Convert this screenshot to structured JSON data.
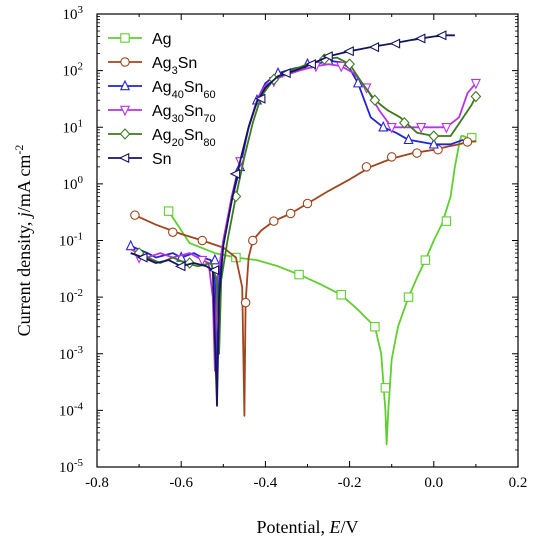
{
  "chart_data": {
    "type": "line",
    "xlabel_text": "Potential, ",
    "xlabel_var": "E",
    "xlabel_unit": "/V",
    "ylabel_text": "Current density, ",
    "ylabel_var": "j",
    "ylabel_unit": "/mA cm",
    "ylabel_exp": "-2",
    "xlim": [
      -0.8,
      0.2
    ],
    "ylim": [
      1e-05,
      1000
    ],
    "yscale": "log",
    "x_ticks": [
      "-0.8",
      "-0.6",
      "-0.4",
      "-0.2",
      "0.0",
      "0.2"
    ],
    "y_ticks": [
      {
        "base": "10",
        "exp": "-5"
      },
      {
        "base": "10",
        "exp": "-4"
      },
      {
        "base": "10",
        "exp": "-3"
      },
      {
        "base": "10",
        "exp": "-2"
      },
      {
        "base": "10",
        "exp": "-1"
      },
      {
        "base": "10",
        "exp": "0"
      },
      {
        "base": "10",
        "exp": "1"
      },
      {
        "base": "10",
        "exp": "2"
      },
      {
        "base": "10",
        "exp": "3"
      }
    ],
    "legend_position": "top-left",
    "series": [
      {
        "name": "Ag",
        "name_parts": [
          [
            "Ag",
            ""
          ]
        ],
        "color": "#5fcf2f",
        "marker": "square",
        "points": [
          [
            -0.63,
            0.33
          ],
          [
            -0.58,
            0.09
          ],
          [
            -0.52,
            0.06
          ],
          [
            -0.47,
            0.05
          ],
          [
            -0.42,
            0.045
          ],
          [
            -0.37,
            0.035
          ],
          [
            -0.32,
            0.025
          ],
          [
            -0.27,
            0.017
          ],
          [
            -0.22,
            0.011
          ],
          [
            -0.18,
            0.006
          ],
          [
            -0.14,
            0.003
          ],
          [
            -0.125,
            0.001
          ],
          [
            -0.115,
            0.0001
          ],
          [
            -0.112,
            2.5e-05
          ],
          [
            -0.108,
            0.0001
          ],
          [
            -0.1,
            0.0008
          ],
          [
            -0.085,
            0.003
          ],
          [
            -0.06,
            0.01
          ],
          [
            -0.04,
            0.022
          ],
          [
            -0.02,
            0.045
          ],
          [
            0.0,
            0.1
          ],
          [
            0.02,
            0.2
          ],
          [
            0.04,
            0.6
          ],
          [
            0.05,
            2.0
          ],
          [
            0.06,
            5.0
          ],
          [
            0.065,
            7.0
          ],
          [
            0.07,
            7.0
          ],
          [
            0.08,
            6.5
          ],
          [
            0.09,
            6.5
          ],
          [
            0.1,
            6.5
          ]
        ],
        "marker_points": [
          [
            -0.63,
            0.33
          ],
          [
            -0.47,
            0.05
          ],
          [
            -0.32,
            0.025
          ],
          [
            -0.22,
            0.011
          ],
          [
            -0.14,
            0.003
          ],
          [
            -0.115,
            0.00025
          ],
          [
            -0.06,
            0.01
          ],
          [
            -0.02,
            0.045
          ],
          [
            0.03,
            0.22
          ],
          [
            0.09,
            6.5
          ]
        ]
      },
      {
        "name": "Ag3Sn",
        "name_parts": [
          [
            "Ag",
            ""
          ],
          [
            "3",
            "sub"
          ],
          [
            "Sn",
            ""
          ]
        ],
        "color": "#a0461e",
        "marker": "circle",
        "points": [
          [
            -0.71,
            0.28
          ],
          [
            -0.66,
            0.19
          ],
          [
            -0.6,
            0.13
          ],
          [
            -0.55,
            0.1
          ],
          [
            -0.5,
            0.075
          ],
          [
            -0.47,
            0.05
          ],
          [
            -0.455,
            0.015
          ],
          [
            -0.45,
            8e-05
          ],
          [
            -0.447,
            0.008
          ],
          [
            -0.44,
            0.05
          ],
          [
            -0.43,
            0.1
          ],
          [
            -0.41,
            0.15
          ],
          [
            -0.38,
            0.22
          ],
          [
            -0.34,
            0.3
          ],
          [
            -0.3,
            0.45
          ],
          [
            -0.25,
            0.75
          ],
          [
            -0.2,
            1.2
          ],
          [
            -0.15,
            2.0
          ],
          [
            -0.1,
            2.8
          ],
          [
            -0.05,
            3.5
          ],
          [
            0.0,
            4.0
          ],
          [
            0.03,
            4.5
          ],
          [
            0.06,
            5.0
          ],
          [
            0.08,
            5.5
          ],
          [
            0.1,
            5.7
          ]
        ],
        "marker_points": [
          [
            -0.71,
            0.28
          ],
          [
            -0.62,
            0.14
          ],
          [
            -0.55,
            0.1
          ],
          [
            -0.447,
            0.008
          ],
          [
            -0.43,
            0.1
          ],
          [
            -0.38,
            0.22
          ],
          [
            -0.34,
            0.3
          ],
          [
            -0.3,
            0.45
          ],
          [
            -0.16,
            2.0
          ],
          [
            -0.1,
            3.0
          ],
          [
            -0.04,
            3.5
          ],
          [
            0.01,
            4.0
          ],
          [
            0.08,
            5.5
          ]
        ]
      },
      {
        "name": "Ag40Sn60",
        "name_parts": [
          [
            "Ag",
            ""
          ],
          [
            "40",
            "sub"
          ],
          [
            "Sn",
            ""
          ],
          [
            "60",
            "sub"
          ]
        ],
        "color": "#2323d6",
        "marker": "triangle-up",
        "points": [
          [
            -0.72,
            0.08
          ],
          [
            -0.68,
            0.06
          ],
          [
            -0.66,
            0.05
          ],
          [
            -0.62,
            0.06
          ],
          [
            -0.6,
            0.05
          ],
          [
            -0.57,
            0.06
          ],
          [
            -0.55,
            0.05
          ],
          [
            -0.53,
            0.045
          ],
          [
            -0.52,
            0.02
          ],
          [
            -0.515,
            0.0005
          ],
          [
            -0.51,
            0.02
          ],
          [
            -0.5,
            0.1
          ],
          [
            -0.48,
            0.5
          ],
          [
            -0.46,
            2.0
          ],
          [
            -0.44,
            10.0
          ],
          [
            -0.42,
            30.0
          ],
          [
            -0.4,
            60.0
          ],
          [
            -0.37,
            90.0
          ],
          [
            -0.33,
            110.0
          ],
          [
            -0.28,
            130.0
          ],
          [
            -0.25,
            150.0
          ],
          [
            -0.22,
            140.0
          ],
          [
            -0.2,
            110.0
          ],
          [
            -0.18,
            60.0
          ],
          [
            -0.15,
            15.0
          ],
          [
            -0.12,
            10.0
          ],
          [
            -0.09,
            8.0
          ],
          [
            -0.06,
            6.0
          ],
          [
            -0.03,
            5.5
          ],
          [
            0.0,
            5.0
          ],
          [
            0.04,
            5.0
          ],
          [
            0.07,
            6.0
          ]
        ],
        "marker_points": [
          [
            -0.72,
            0.08
          ],
          [
            -0.6,
            0.05
          ],
          [
            -0.52,
            0.045
          ],
          [
            -0.46,
            2.0
          ],
          [
            -0.42,
            30.0
          ],
          [
            -0.37,
            90.0
          ],
          [
            -0.3,
            130.0
          ],
          [
            -0.25,
            150.0
          ],
          [
            -0.18,
            60.0
          ],
          [
            -0.12,
            10.0
          ],
          [
            -0.06,
            6.0
          ],
          [
            0.0,
            5.0
          ]
        ]
      },
      {
        "name": "Ag30Sn70",
        "name_parts": [
          [
            "Ag",
            ""
          ],
          [
            "30",
            "sub"
          ],
          [
            "Sn",
            ""
          ],
          [
            "70",
            "sub"
          ]
        ],
        "color": "#b434e6",
        "marker": "triangle-down",
        "points": [
          [
            -0.72,
            0.07
          ],
          [
            -0.68,
            0.05
          ],
          [
            -0.65,
            0.06
          ],
          [
            -0.62,
            0.05
          ],
          [
            -0.58,
            0.06
          ],
          [
            -0.55,
            0.045
          ],
          [
            -0.535,
            0.04
          ],
          [
            -0.525,
            0.01
          ],
          [
            -0.52,
            0.0005
          ],
          [
            -0.515,
            0.02
          ],
          [
            -0.5,
            0.1
          ],
          [
            -0.48,
            0.6
          ],
          [
            -0.46,
            2.5
          ],
          [
            -0.44,
            10.0
          ],
          [
            -0.42,
            30.0
          ],
          [
            -0.4,
            55.0
          ],
          [
            -0.36,
            80.0
          ],
          [
            -0.32,
            100.0
          ],
          [
            -0.28,
            120.0
          ],
          [
            -0.25,
            130.0
          ],
          [
            -0.22,
            120.0
          ],
          [
            -0.19,
            90.0
          ],
          [
            -0.16,
            50.0
          ],
          [
            -0.13,
            20.0
          ],
          [
            -0.1,
            10.0
          ],
          [
            -0.07,
            10.0
          ],
          [
            -0.03,
            10.0
          ],
          [
            0.0,
            10.0
          ],
          [
            0.03,
            10.0
          ],
          [
            0.06,
            15.0
          ],
          [
            0.08,
            40.0
          ],
          [
            0.1,
            60.0
          ]
        ],
        "marker_points": [
          [
            -0.7,
            0.05
          ],
          [
            -0.55,
            0.045
          ],
          [
            -0.46,
            2.5
          ],
          [
            -0.38,
            65.0
          ],
          [
            -0.28,
            120.0
          ],
          [
            -0.22,
            120.0
          ],
          [
            -0.16,
            50.0
          ],
          [
            -0.1,
            10.0
          ],
          [
            -0.03,
            10.0
          ],
          [
            0.03,
            10.0
          ],
          [
            0.1,
            60.0
          ]
        ]
      },
      {
        "name": "Ag20Sn80",
        "name_parts": [
          [
            "Ag",
            ""
          ],
          [
            "20",
            "sub"
          ],
          [
            "Sn",
            ""
          ],
          [
            "80",
            "sub"
          ]
        ],
        "color": "#3d7a1e",
        "marker": "diamond",
        "points": [
          [
            -0.72,
            0.06
          ],
          [
            -0.68,
            0.05
          ],
          [
            -0.65,
            0.04
          ],
          [
            -0.62,
            0.05
          ],
          [
            -0.59,
            0.04
          ],
          [
            -0.56,
            0.035
          ],
          [
            -0.53,
            0.04
          ],
          [
            -0.515,
            0.02
          ],
          [
            -0.51,
            0.001
          ],
          [
            -0.505,
            0.02
          ],
          [
            -0.49,
            0.1
          ],
          [
            -0.47,
            0.6
          ],
          [
            -0.45,
            3.0
          ],
          [
            -0.43,
            12.0
          ],
          [
            -0.41,
            35.0
          ],
          [
            -0.38,
            70.0
          ],
          [
            -0.34,
            100.0
          ],
          [
            -0.3,
            130.0
          ],
          [
            -0.26,
            160.0
          ],
          [
            -0.23,
            170.0
          ],
          [
            -0.2,
            130.0
          ],
          [
            -0.17,
            60.0
          ],
          [
            -0.14,
            30.0
          ],
          [
            -0.11,
            20.0
          ],
          [
            -0.08,
            15.0
          ],
          [
            -0.04,
            8.0
          ],
          [
            0.0,
            7.0
          ],
          [
            0.04,
            7.0
          ],
          [
            0.07,
            15.0
          ],
          [
            0.09,
            25.0
          ],
          [
            0.1,
            35.0
          ]
        ],
        "marker_points": [
          [
            -0.7,
            0.06
          ],
          [
            -0.58,
            0.04
          ],
          [
            -0.47,
            0.6
          ],
          [
            -0.38,
            70.0
          ],
          [
            -0.26,
            160.0
          ],
          [
            -0.2,
            130.0
          ],
          [
            -0.14,
            30.0
          ],
          [
            -0.07,
            12.0
          ],
          [
            0.0,
            7.0
          ],
          [
            0.1,
            35.0
          ]
        ]
      },
      {
        "name": "Sn",
        "name_parts": [
          [
            "Sn",
            ""
          ]
        ],
        "color": "#14145f",
        "marker": "triangle-left",
        "points": [
          [
            -0.72,
            0.06
          ],
          [
            -0.69,
            0.05
          ],
          [
            -0.66,
            0.04
          ],
          [
            -0.63,
            0.045
          ],
          [
            -0.6,
            0.035
          ],
          [
            -0.57,
            0.04
          ],
          [
            -0.54,
            0.035
          ],
          [
            -0.525,
            0.03
          ],
          [
            -0.515,
            0.00012
          ],
          [
            -0.51,
            0.01
          ],
          [
            -0.5,
            0.08
          ],
          [
            -0.48,
            0.5
          ],
          [
            -0.46,
            2.5
          ],
          [
            -0.44,
            10.0
          ],
          [
            -0.42,
            28.0
          ],
          [
            -0.4,
            50.0
          ],
          [
            -0.37,
            80.0
          ],
          [
            -0.33,
            100.0
          ],
          [
            -0.29,
            130.0
          ],
          [
            -0.25,
            180.0
          ],
          [
            -0.2,
            220.0
          ],
          [
            -0.15,
            260.0
          ],
          [
            -0.1,
            300.0
          ],
          [
            -0.05,
            350.0
          ],
          [
            0.0,
            400.0
          ],
          [
            0.03,
            420.0
          ],
          [
            0.05,
            420.0
          ]
        ],
        "marker_points": [
          [
            -0.69,
            0.05
          ],
          [
            -0.6,
            0.035
          ],
          [
            -0.52,
            0.03
          ],
          [
            -0.47,
            1.5
          ],
          [
            -0.41,
            32.0
          ],
          [
            -0.35,
            90.0
          ],
          [
            -0.29,
            130.0
          ],
          [
            -0.25,
            180.0
          ],
          [
            -0.2,
            220.0
          ],
          [
            -0.14,
            260.0
          ],
          [
            -0.09,
            300.0
          ],
          [
            -0.03,
            370.0
          ],
          [
            0.02,
            420.0
          ]
        ]
      }
    ]
  }
}
